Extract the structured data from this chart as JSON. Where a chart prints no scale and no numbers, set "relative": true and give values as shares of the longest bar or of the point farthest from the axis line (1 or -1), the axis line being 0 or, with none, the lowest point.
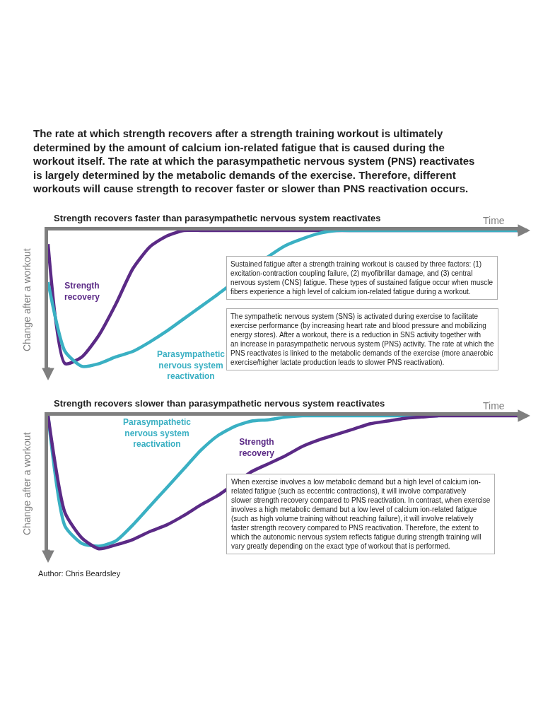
{
  "chart_data": [
    {
      "type": "line",
      "title": "Strength recovers faster than parasympathetic nervous system reactivates",
      "xlabel": "Time",
      "ylabel": "Change after a workout",
      "relative": true,
      "marker": "none",
      "line_style": "solid",
      "categories": [
        null,
        null,
        null,
        null,
        null,
        null,
        null,
        null,
        null,
        null,
        null,
        null,
        null,
        null,
        null,
        null,
        null,
        null,
        null,
        null,
        null,
        null,
        null,
        null,
        null,
        null,
        null,
        null,
        null
      ],
      "series": [
        {
          "name": "Strength\nrecovery",
          "color": "#5b2a86",
          "values": [
            -0.1,
            -0.98,
            -0.93,
            -0.77,
            -0.54,
            -0.28,
            -0.12,
            -0.04,
            0,
            0,
            0,
            0,
            0,
            0,
            0,
            0,
            0,
            0,
            0,
            0,
            0,
            0,
            0,
            0,
            0,
            0,
            0,
            0,
            0
          ]
        },
        {
          "name": "Parasympathetic\nnervous system\nreactivation",
          "color": "#3ab0c3",
          "values": [
            -0.38,
            -0.89,
            -1.0,
            -0.98,
            -0.93,
            -0.89,
            -0.82,
            -0.74,
            -0.65,
            -0.56,
            -0.47,
            null,
            null,
            -0.19,
            -0.11,
            -0.06,
            -0.02,
            0,
            0,
            0,
            0,
            0,
            0,
            0,
            0,
            0,
            0,
            0,
            0
          ]
        }
      ],
      "annotations": [
        "The rate at which strength recovers after a strength training workout is ultimately determined by the amount of calcium ion-related fatigue that is caused during the workout itself. The rate at which the parasympathetic nervous system (PNS) reactivates is largely determined by the metabolic demands of the exercise. Therefore, different workouts will cause strength to recover faster or slower than PNS reactivation occurs.",
        "Sustained fatigue after a strength training workout is caused by three factors: (1) excitation-contraction coupling failure, (2) myofibrillar damage, and (3) central nervous system (CNS) fatigue. These types of sustained fatigue occur when muscle fibers experience a high level of calcium ion-related fatigue during a workout.",
        "The sympathetic nervous system (SNS) is activated during exercise to facilitate exercise performance (by increasing heart rate and blood pressure and mobilizing energy stores). After a workout, there is a reduction in SNS activity together with an increase in parasympathetic nervous system (PNS) activity. The rate at which the PNS reactivates is linked to the metabolic demands of the exercise (more anaerobic exercise/higher lactate production leads to slower PNS reactivation)."
      ]
    },
    {
      "type": "line",
      "title": "Strength recovers slower than parasympathetic nervous system reactivates",
      "xlabel": "Time",
      "ylabel": "Change after a workout",
      "relative": true,
      "marker": "none",
      "line_style": "solid",
      "categories": [
        null,
        null,
        null,
        null,
        null,
        null,
        null,
        null,
        null,
        null,
        null,
        null,
        null,
        null,
        null,
        null,
        null,
        null,
        null,
        null,
        null,
        null,
        null,
        null,
        null,
        null,
        null,
        null,
        null
      ],
      "series": [
        {
          "name": "Parasympathetic\nnervous system\nreactivation",
          "color": "#3ab0c3",
          "values": [
            0,
            -0.83,
            -0.96,
            -0.98,
            -0.94,
            -0.82,
            -0.68,
            -0.54,
            -0.4,
            -0.26,
            -0.15,
            -0.08,
            -0.04,
            -0.03,
            -0.01,
            0,
            0,
            0,
            0,
            0,
            0,
            0,
            0,
            0,
            null,
            null,
            null,
            null,
            null
          ]
        },
        {
          "name": "Strength\nrecovery",
          "color": "#5b2a86",
          "values": [
            0,
            -0.73,
            -0.92,
            -1.0,
            -0.97,
            -0.93,
            -0.87,
            -0.82,
            -0.75,
            -0.67,
            -0.6,
            null,
            -0.42,
            -0.36,
            -0.3,
            -0.23,
            -0.18,
            -0.14,
            -0.1,
            -0.06,
            -0.04,
            -0.02,
            -0.01,
            0,
            0,
            0,
            0,
            0,
            0
          ]
        }
      ],
      "annotations": [
        "When exercise involves a low metabolic demand but a high level of calcium ion-related fatigue (such as eccentric contractions), it will involve comparatively slower strength recovery compared to PNS reactivation. In contrast, when exercise involves a high metabolic demand but a low level of calcium ion-related fatigue (such as high volume training without reaching failure), it will involve relatively faster strength recovery compared to PNS reactivation. Therefore, the extent to which the autonomic nervous system reflects fatigue during strength training will vary greatly depending on the exact type of workout that is performed.",
        "Author: Chris Beardsley"
      ]
    }
  ]
}
